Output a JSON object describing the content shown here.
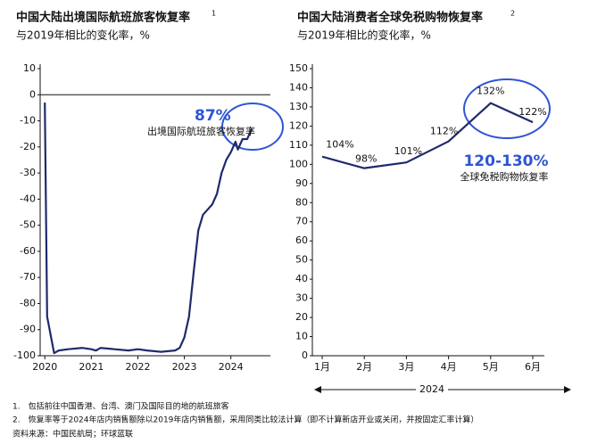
{
  "chart_data": [
    {
      "type": "line",
      "title": "中国大陆出境国际航班旅客恢复率",
      "title_note": "1",
      "subtitle": "与2019年相比的变化率，%",
      "x": [
        2020.0,
        2020.05,
        2020.2,
        2020.3,
        2020.5,
        2020.8,
        2021.0,
        2021.1,
        2021.2,
        2021.5,
        2021.8,
        2022.0,
        2022.2,
        2022.5,
        2022.8,
        2022.9,
        2023.0,
        2023.1,
        2023.2,
        2023.3,
        2023.4,
        2023.5,
        2023.6,
        2023.7,
        2023.8,
        2023.9,
        2024.0,
        2024.1,
        2024.15,
        2024.25,
        2024.35,
        2024.45
      ],
      "values": [
        -3,
        -85,
        -99,
        -98,
        -97.5,
        -97,
        -97.5,
        -98,
        -97,
        -97.5,
        -98,
        -97.5,
        -98,
        -98.5,
        -98,
        -97,
        -93,
        -85,
        -68,
        -52,
        -46,
        -44,
        -42,
        -38,
        -30,
        -25,
        -22,
        -18,
        -21,
        -17,
        -17,
        -13
      ],
      "color": "#1f2a6b",
      "xlim": [
        2019.9,
        2024.85
      ],
      "xticks": [
        2020,
        2021,
        2022,
        2023,
        2024
      ],
      "ylim": [
        -100,
        10
      ],
      "yticks": [
        10,
        0,
        -10,
        -20,
        -30,
        -40,
        -50,
        -60,
        -70,
        -80,
        -90,
        -100
      ],
      "zero_line": true,
      "annotations": [
        "87%",
        "出境国际航班旅客恢复率"
      ]
    },
    {
      "type": "line",
      "title": "中国大陆消费者全球免税购物恢复率",
      "title_note": "2",
      "subtitle": "与2019年相比的变化率，%",
      "categories": [
        "1月",
        "2月",
        "3月",
        "4月",
        "5月",
        "6月"
      ],
      "values": [
        104,
        98,
        101,
        112,
        132,
        122
      ],
      "value_labels": [
        "104%",
        "98%",
        "101%",
        "112%",
        "132%",
        "122%"
      ],
      "color": "#1f2a6b",
      "ylim": [
        0,
        150
      ],
      "yticks": [
        150,
        140,
        130,
        120,
        110,
        100,
        90,
        80,
        70,
        60,
        50,
        40,
        30,
        20,
        10,
        0
      ],
      "x_group_label": "2024",
      "annotations": [
        "120-130%",
        "全球免税购物恢复率"
      ]
    }
  ],
  "notes": [
    "1.　包括前往中国香港、台湾、澳门及国际目的地的航班旅客",
    "2.　恢复率等于2024年店内销售额除以2019年店内销售额，采用同类比较法计算（即不计算新店开业或关闭，并按固定汇率计算）"
  ],
  "source": "资料来源：中国民航局；环球蓝联"
}
